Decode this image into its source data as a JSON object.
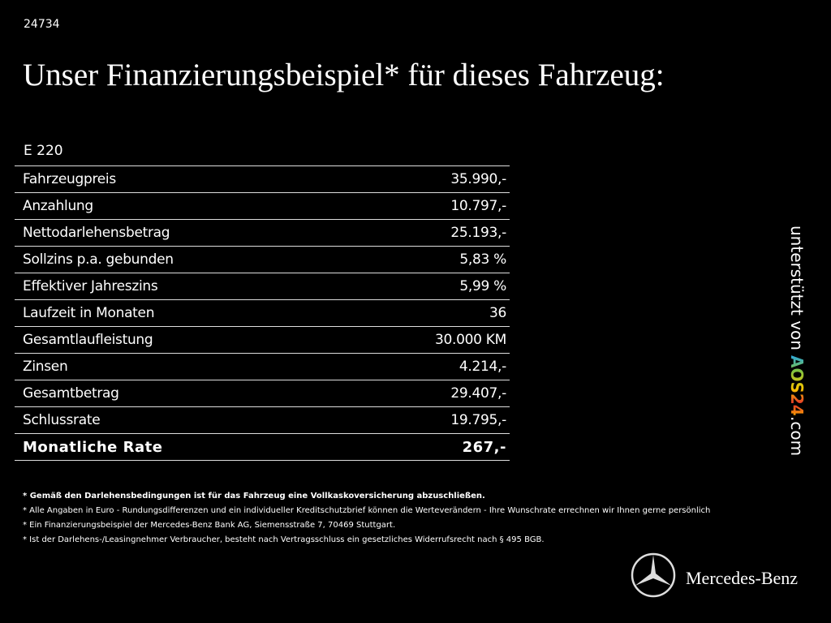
{
  "header": {
    "id": "24734",
    "title": "Unser Finanzierungsbeispiel* für dieses Fahrzeug:"
  },
  "table": {
    "model": "E 220",
    "rows": [
      [
        "Fahrzeugpreis",
        "35.990,-"
      ],
      [
        "Anzahlung",
        "10.797,-"
      ],
      [
        "Nettodarlehensbetrag",
        "25.193,-"
      ],
      [
        "Sollzins p.a. gebunden",
        "5,83 %"
      ],
      [
        "Effektiver Jahreszins",
        "5,99 %"
      ],
      [
        "Laufzeit in Monaten",
        "36"
      ],
      [
        "Gesamtlaufleistung",
        "30.000 KM"
      ],
      [
        "Zinsen",
        "4.214,-"
      ],
      [
        "Gesamtbetrag",
        "29.407,-"
      ],
      [
        "Schlussrate",
        "19.795,-"
      ]
    ],
    "total": [
      "Monatliche Rate",
      "267,-"
    ]
  },
  "footnotes": [
    "* Gemäß den Darlehensbedingungen ist für das Fahrzeug eine Vollkaskoversicherung abzuschließen.",
    "* Alle Angaben in Euro - Rundungsdifferenzen und ein individueller Kreditschutzbrief können die Werteverändern - Ihre Wunschrate errechnen wir Ihnen gerne persönlich",
    "* Ein Finanzierungsbeispiel der Mercedes-Benz Bank AG, Siemensstraße 7, 70469 Stuttgart.",
    "* Ist der Darlehens-/Leasingnehmer Verbraucher, besteht nach Vertragsschluss ein gesetzliches Widerrufsrecht nach § 495 BGB."
  ],
  "sidebar": {
    "text": "unterstützt von",
    "logo": "AOS24",
    "suffix": ".com"
  },
  "brand": "Mercedes-Benz"
}
